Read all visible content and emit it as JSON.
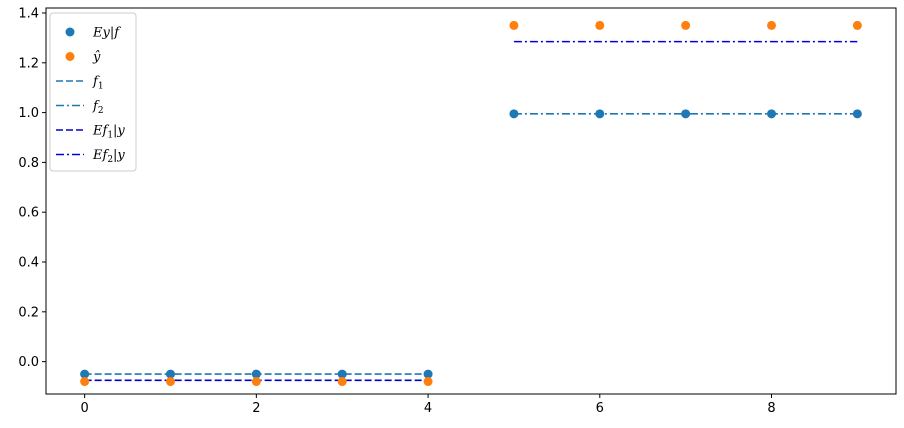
{
  "chart_data": {
    "type": "scatter",
    "title": "",
    "xlabel": "",
    "ylabel": "",
    "xlim": [
      -0.45,
      9.45
    ],
    "ylim": [
      -0.13,
      1.42
    ],
    "xticks": [
      0,
      2,
      4,
      6,
      8
    ],
    "xtick_labels": [
      "0",
      "2",
      "4",
      "6",
      "8"
    ],
    "yticks": [
      0.0,
      0.2,
      0.4,
      0.6,
      0.8,
      1.0,
      1.2,
      1.4
    ],
    "ytick_labels": [
      "0.0",
      "0.2",
      "0.4",
      "0.6",
      "0.8",
      "1.0",
      "1.2",
      "1.4"
    ],
    "grid": false,
    "legend_position": "top-left",
    "series": [
      {
        "name": "Ey|f",
        "kind": "scatter",
        "color": "#1f77b4",
        "x": [
          0,
          1,
          2,
          3,
          4,
          5,
          6,
          7,
          8,
          9
        ],
        "y": [
          -0.05,
          -0.05,
          -0.05,
          -0.05,
          -0.05,
          0.995,
          0.995,
          0.995,
          0.995,
          0.995
        ]
      },
      {
        "name": "ŷ",
        "kind": "scatter",
        "color": "#ff7f0e",
        "x": [
          0,
          1,
          2,
          3,
          4,
          5,
          6,
          7,
          8,
          9
        ],
        "y": [
          -0.08,
          -0.08,
          -0.08,
          -0.08,
          -0.08,
          1.35,
          1.35,
          1.35,
          1.35,
          1.35
        ]
      },
      {
        "name": "f1",
        "kind": "line",
        "dash": "dashed",
        "color": "#1f77b4",
        "x": [
          0,
          4
        ],
        "y": [
          -0.05,
          -0.05
        ]
      },
      {
        "name": "f2",
        "kind": "line",
        "dash": "dashdot",
        "color": "#1f77b4",
        "x": [
          5,
          9
        ],
        "y": [
          0.995,
          0.995
        ]
      },
      {
        "name": "Ef1|y",
        "kind": "line",
        "dash": "dashed",
        "color": "#0000cd",
        "x": [
          0,
          4
        ],
        "y": [
          -0.075,
          -0.075
        ]
      },
      {
        "name": "Ef2|y",
        "kind": "line",
        "dash": "dashdot",
        "color": "#0000ee",
        "x": [
          5,
          9
        ],
        "y": [
          1.285,
          1.285
        ]
      }
    ],
    "legend": [
      {
        "base": "Ey|f",
        "sub": "",
        "rest": "",
        "marker": "dot",
        "series": 0
      },
      {
        "base": "ŷ",
        "sub": "",
        "rest": "",
        "marker": "dot",
        "series": 1
      },
      {
        "base": "f",
        "sub": "1",
        "rest": "",
        "marker": "line",
        "series": 2
      },
      {
        "base": "f",
        "sub": "2",
        "rest": "",
        "marker": "line",
        "series": 3
      },
      {
        "base": "Ef",
        "sub": "1",
        "rest": "|y",
        "marker": "line",
        "series": 4
      },
      {
        "base": "Ef",
        "sub": "2",
        "rest": "|y",
        "marker": "line",
        "series": 5
      }
    ]
  }
}
